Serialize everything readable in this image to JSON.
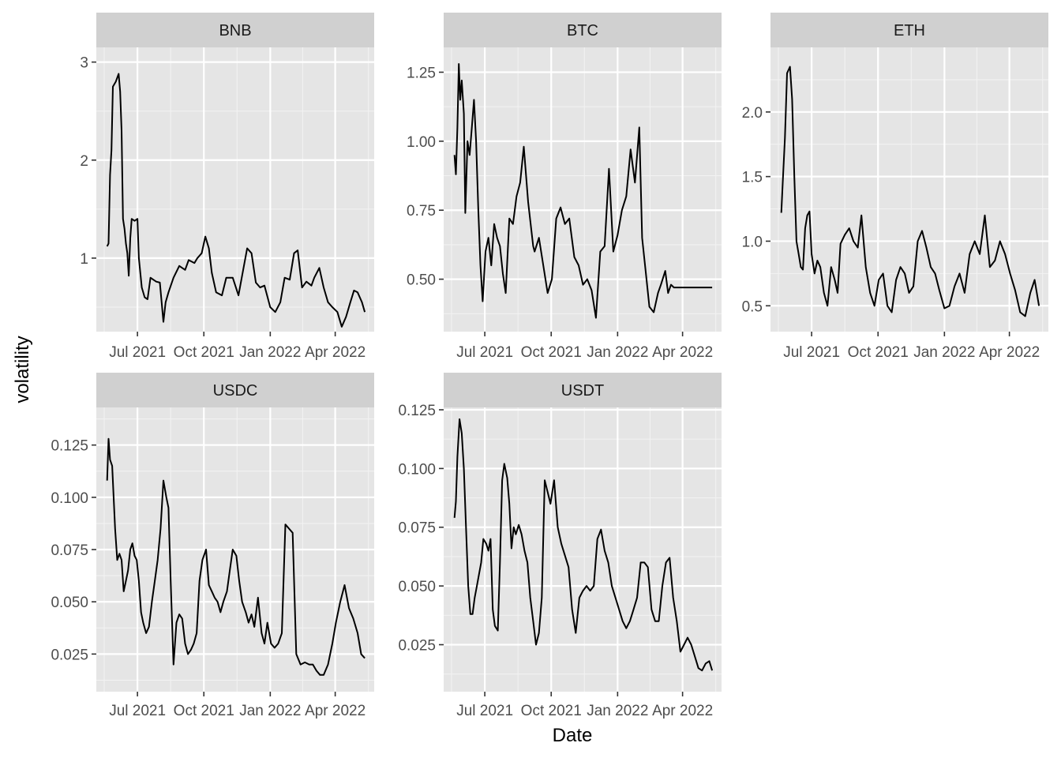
{
  "chart_data": {
    "type": "line",
    "layout": "faceted",
    "xlabel": "Date",
    "ylabel": "volatility",
    "x_ticks": [
      "2021-07-01",
      "2021-10-01",
      "2022-01-01",
      "2022-04-01"
    ],
    "x_tick_labels": [
      "Jul 2021",
      "Oct 2021",
      "Jan 2022",
      "Apr 2022"
    ],
    "xlim": [
      "2021-05-05",
      "2022-05-25"
    ],
    "grid": true,
    "legend": "none",
    "facets": [
      {
        "name": "BNB",
        "ylim": [
          0.25,
          3.15
        ],
        "y_ticks": [
          1,
          2,
          3
        ],
        "y_tick_labels": [
          "1",
          "2",
          "3"
        ],
        "x": [
          "2021-05-20",
          "2021-05-22",
          "2021-05-24",
          "2021-05-26",
          "2021-05-28",
          "2021-06-01",
          "2021-06-05",
          "2021-06-07",
          "2021-06-09",
          "2021-06-11",
          "2021-06-13",
          "2021-06-15",
          "2021-06-17",
          "2021-06-19",
          "2021-06-21",
          "2021-06-23",
          "2021-06-27",
          "2021-07-01",
          "2021-07-03",
          "2021-07-07",
          "2021-07-11",
          "2021-07-15",
          "2021-07-19",
          "2021-07-23",
          "2021-07-27",
          "2021-08-01",
          "2021-08-06",
          "2021-08-09",
          "2021-08-13",
          "2021-08-20",
          "2021-08-28",
          "2021-09-05",
          "2021-09-10",
          "2021-09-18",
          "2021-09-22",
          "2021-09-28",
          "2021-10-03",
          "2021-10-08",
          "2021-10-12",
          "2021-10-18",
          "2021-10-26",
          "2021-11-01",
          "2021-11-10",
          "2021-11-18",
          "2021-11-25",
          "2021-11-30",
          "2021-12-06",
          "2021-12-12",
          "2021-12-18",
          "2021-12-24",
          "2022-01-01",
          "2022-01-08",
          "2022-01-15",
          "2022-01-21",
          "2022-01-28",
          "2022-02-03",
          "2022-02-08",
          "2022-02-14",
          "2022-02-20",
          "2022-02-27",
          "2022-03-03",
          "2022-03-10",
          "2022-03-16",
          "2022-03-22",
          "2022-03-28",
          "2022-04-04",
          "2022-04-10",
          "2022-04-16",
          "2022-04-22",
          "2022-04-27",
          "2022-05-02",
          "2022-05-08",
          "2022-05-12"
        ],
        "y": [
          1.12,
          1.15,
          1.85,
          2.1,
          2.75,
          2.8,
          2.88,
          2.7,
          2.3,
          1.4,
          1.3,
          1.15,
          1.05,
          0.82,
          1.2,
          1.4,
          1.38,
          1.4,
          1.0,
          0.7,
          0.6,
          0.58,
          0.8,
          0.78,
          0.76,
          0.75,
          0.35,
          0.55,
          0.65,
          0.8,
          0.92,
          0.88,
          0.98,
          0.95,
          1.0,
          1.05,
          1.22,
          1.1,
          0.85,
          0.65,
          0.62,
          0.8,
          0.8,
          0.62,
          0.9,
          1.1,
          1.05,
          0.75,
          0.7,
          0.72,
          0.5,
          0.45,
          0.55,
          0.8,
          0.78,
          1.05,
          1.08,
          0.7,
          0.76,
          0.72,
          0.8,
          0.9,
          0.7,
          0.55,
          0.5,
          0.45,
          0.3,
          0.4,
          0.55,
          0.67,
          0.65,
          0.55,
          0.45
        ]
      },
      {
        "name": "BTC",
        "ylim": [
          0.31,
          1.34
        ],
        "y_ticks": [
          0.5,
          0.75,
          1.0,
          1.25
        ],
        "y_tick_labels": [
          "0.50",
          "0.75",
          "1.00",
          "1.25"
        ],
        "x": [
          "2021-05-20",
          "2021-05-22",
          "2021-05-24",
          "2021-05-26",
          "2021-05-28",
          "2021-05-30",
          "2021-06-02",
          "2021-06-04",
          "2021-06-07",
          "2021-06-10",
          "2021-06-13",
          "2021-06-16",
          "2021-06-19",
          "2021-06-22",
          "2021-06-25",
          "2021-06-28",
          "2021-07-02",
          "2021-07-06",
          "2021-07-10",
          "2021-07-14",
          "2021-07-18",
          "2021-07-22",
          "2021-07-26",
          "2021-07-30",
          "2021-08-04",
          "2021-08-09",
          "2021-08-14",
          "2021-08-19",
          "2021-08-24",
          "2021-08-30",
          "2021-09-06",
          "2021-09-08",
          "2021-09-14",
          "2021-09-20",
          "2021-09-26",
          "2021-10-02",
          "2021-10-08",
          "2021-10-14",
          "2021-10-20",
          "2021-10-26",
          "2021-11-02",
          "2021-11-08",
          "2021-11-14",
          "2021-11-20",
          "2021-11-26",
          "2021-12-02",
          "2021-12-08",
          "2021-12-14",
          "2021-12-20",
          "2021-12-26",
          "2022-01-01",
          "2022-01-07",
          "2022-01-13",
          "2022-01-19",
          "2022-01-25",
          "2022-01-31",
          "2022-02-04",
          "2022-02-08",
          "2022-02-14",
          "2022-02-20",
          "2022-02-26",
          "2022-03-02",
          "2022-03-08",
          "2022-03-12",
          "2022-03-16",
          "2022-03-20",
          "2022-03-25",
          "2022-03-30",
          "2022-04-04",
          "2022-04-10",
          "2022-04-16",
          "2022-04-22",
          "2022-04-28",
          "2022-05-03",
          "2022-05-08",
          "2022-05-12"
        ],
        "y": [
          0.95,
          0.88,
          1.05,
          1.28,
          1.15,
          1.22,
          1.1,
          0.74,
          1.0,
          0.95,
          1.05,
          1.15,
          1.0,
          0.75,
          0.55,
          0.42,
          0.6,
          0.65,
          0.55,
          0.7,
          0.65,
          0.62,
          0.52,
          0.45,
          0.72,
          0.7,
          0.8,
          0.85,
          0.98,
          0.78,
          0.62,
          0.6,
          0.65,
          0.55,
          0.45,
          0.5,
          0.72,
          0.76,
          0.7,
          0.72,
          0.58,
          0.55,
          0.48,
          0.5,
          0.46,
          0.36,
          0.6,
          0.62,
          0.9,
          0.6,
          0.66,
          0.75,
          0.8,
          0.97,
          0.85,
          1.05,
          0.65,
          0.55,
          0.4,
          0.38,
          0.45,
          0.48,
          0.53,
          0.45,
          0.48,
          0.47,
          0.47,
          0.47,
          0.47,
          0.47,
          0.47,
          0.47,
          0.47,
          0.47,
          0.47,
          0.47
        ]
      },
      {
        "name": "ETH",
        "ylim": [
          0.3,
          2.5
        ],
        "y_ticks": [
          0.5,
          1.0,
          1.5,
          2.0
        ],
        "y_tick_labels": [
          "0.5",
          "1.0",
          "1.5",
          "2.0"
        ],
        "x": [
          "2021-05-20",
          "2021-05-22",
          "2021-05-25",
          "2021-05-28",
          "2021-06-01",
          "2021-06-04",
          "2021-06-07",
          "2021-06-10",
          "2021-06-13",
          "2021-06-16",
          "2021-06-19",
          "2021-06-22",
          "2021-06-25",
          "2021-06-28",
          "2021-07-01",
          "2021-07-05",
          "2021-07-09",
          "2021-07-13",
          "2021-07-18",
          "2021-07-23",
          "2021-07-28",
          "2021-08-02",
          "2021-08-06",
          "2021-08-10",
          "2021-08-16",
          "2021-08-22",
          "2021-08-28",
          "2021-09-03",
          "2021-09-08",
          "2021-09-14",
          "2021-09-20",
          "2021-09-26",
          "2021-10-02",
          "2021-10-08",
          "2021-10-14",
          "2021-10-20",
          "2021-10-26",
          "2021-11-01",
          "2021-11-07",
          "2021-11-13",
          "2021-11-19",
          "2021-11-25",
          "2021-12-01",
          "2021-12-07",
          "2021-12-13",
          "2021-12-19",
          "2021-12-25",
          "2022-01-01",
          "2022-01-08",
          "2022-01-15",
          "2022-01-22",
          "2022-01-29",
          "2022-02-05",
          "2022-02-12",
          "2022-02-19",
          "2022-02-26",
          "2022-03-05",
          "2022-03-12",
          "2022-03-19",
          "2022-03-26",
          "2022-04-02",
          "2022-04-09",
          "2022-04-16",
          "2022-04-23",
          "2022-04-30",
          "2022-05-06",
          "2022-05-12"
        ],
        "y": [
          1.22,
          1.45,
          1.8,
          2.3,
          2.35,
          2.1,
          1.5,
          1.0,
          0.9,
          0.8,
          0.78,
          1.1,
          1.2,
          1.23,
          0.9,
          0.75,
          0.85,
          0.8,
          0.6,
          0.5,
          0.8,
          0.7,
          0.6,
          0.98,
          1.05,
          1.1,
          1.0,
          0.95,
          1.2,
          0.8,
          0.6,
          0.5,
          0.7,
          0.75,
          0.5,
          0.45,
          0.7,
          0.8,
          0.75,
          0.6,
          0.65,
          1.0,
          1.08,
          0.95,
          0.8,
          0.75,
          0.62,
          0.48,
          0.5,
          0.65,
          0.75,
          0.6,
          0.9,
          1.0,
          0.9,
          1.2,
          0.8,
          0.85,
          1.0,
          0.9,
          0.75,
          0.62,
          0.45,
          0.42,
          0.6,
          0.7,
          0.5
        ]
      },
      {
        "name": "USDC",
        "ylim": [
          0.007,
          0.143
        ],
        "y_ticks": [
          0.025,
          0.05,
          0.075,
          0.1,
          0.125
        ],
        "y_tick_labels": [
          "0.025",
          "0.050",
          "0.075",
          "0.100",
          "0.125"
        ],
        "x": [
          "2021-05-20",
          "2021-05-22",
          "2021-05-24",
          "2021-05-27",
          "2021-05-31",
          "2021-06-03",
          "2021-06-06",
          "2021-06-09",
          "2021-06-12",
          "2021-06-15",
          "2021-06-18",
          "2021-06-21",
          "2021-06-24",
          "2021-06-27",
          "2021-06-30",
          "2021-07-03",
          "2021-07-06",
          "2021-07-09",
          "2021-07-13",
          "2021-07-17",
          "2021-07-21",
          "2021-07-25",
          "2021-07-29",
          "2021-08-02",
          "2021-08-06",
          "2021-08-10",
          "2021-08-13",
          "2021-08-16",
          "2021-08-20",
          "2021-08-24",
          "2021-08-28",
          "2021-09-01",
          "2021-09-05",
          "2021-09-09",
          "2021-09-13",
          "2021-09-17",
          "2021-09-21",
          "2021-09-25",
          "2021-09-29",
          "2021-10-04",
          "2021-10-08",
          "2021-10-12",
          "2021-10-16",
          "2021-10-20",
          "2021-10-24",
          "2021-10-28",
          "2021-11-02",
          "2021-11-06",
          "2021-11-10",
          "2021-11-15",
          "2021-11-19",
          "2021-11-23",
          "2021-11-28",
          "2021-12-02",
          "2021-12-06",
          "2021-12-10",
          "2021-12-15",
          "2021-12-20",
          "2021-12-24",
          "2021-12-28",
          "2022-01-02",
          "2022-01-07",
          "2022-01-12",
          "2022-01-17",
          "2022-01-22",
          "2022-01-27",
          "2022-02-01",
          "2022-02-06",
          "2022-02-12",
          "2022-02-18",
          "2022-02-24",
          "2022-03-01",
          "2022-03-06",
          "2022-03-11",
          "2022-03-16",
          "2022-03-22",
          "2022-03-28",
          "2022-04-02",
          "2022-04-08",
          "2022-04-14",
          "2022-04-20",
          "2022-04-26",
          "2022-05-02",
          "2022-05-07",
          "2022-05-12"
        ],
        "y": [
          0.108,
          0.128,
          0.118,
          0.115,
          0.085,
          0.07,
          0.073,
          0.07,
          0.055,
          0.06,
          0.065,
          0.075,
          0.078,
          0.072,
          0.07,
          0.06,
          0.045,
          0.04,
          0.035,
          0.038,
          0.05,
          0.06,
          0.07,
          0.085,
          0.108,
          0.1,
          0.095,
          0.06,
          0.02,
          0.04,
          0.044,
          0.042,
          0.03,
          0.025,
          0.027,
          0.03,
          0.035,
          0.06,
          0.07,
          0.075,
          0.058,
          0.055,
          0.052,
          0.05,
          0.045,
          0.05,
          0.055,
          0.065,
          0.075,
          0.072,
          0.06,
          0.05,
          0.045,
          0.04,
          0.044,
          0.038,
          0.052,
          0.035,
          0.03,
          0.04,
          0.03,
          0.028,
          0.03,
          0.035,
          0.087,
          0.085,
          0.083,
          0.025,
          0.02,
          0.021,
          0.02,
          0.02,
          0.017,
          0.015,
          0.015,
          0.02,
          0.03,
          0.04,
          0.05,
          0.058,
          0.047,
          0.042,
          0.035,
          0.025,
          0.023
        ]
      },
      {
        "name": "USDT",
        "ylim": [
          0.005,
          0.126
        ],
        "y_ticks": [
          0.025,
          0.05,
          0.075,
          0.1,
          0.125
        ],
        "y_tick_labels": [
          "0.025",
          "0.050",
          "0.075",
          "0.100",
          "0.125"
        ],
        "x": [
          "2021-05-20",
          "2021-05-22",
          "2021-05-24",
          "2021-05-27",
          "2021-05-30",
          "2021-06-02",
          "2021-06-05",
          "2021-06-08",
          "2021-06-11",
          "2021-06-14",
          "2021-06-17",
          "2021-06-20",
          "2021-06-23",
          "2021-06-26",
          "2021-06-29",
          "2021-07-03",
          "2021-07-06",
          "2021-07-09",
          "2021-07-12",
          "2021-07-15",
          "2021-07-19",
          "2021-07-22",
          "2021-07-25",
          "2021-07-28",
          "2021-08-01",
          "2021-08-04",
          "2021-08-07",
          "2021-08-10",
          "2021-08-13",
          "2021-08-17",
          "2021-08-21",
          "2021-08-25",
          "2021-08-29",
          "2021-09-02",
          "2021-09-06",
          "2021-09-10",
          "2021-09-14",
          "2021-09-18",
          "2021-09-22",
          "2021-09-26",
          "2021-09-30",
          "2021-10-05",
          "2021-10-10",
          "2021-10-15",
          "2021-10-20",
          "2021-10-25",
          "2021-10-30",
          "2021-11-04",
          "2021-11-09",
          "2021-11-14",
          "2021-11-19",
          "2021-11-24",
          "2021-11-29",
          "2021-12-04",
          "2021-12-09",
          "2021-12-14",
          "2021-12-19",
          "2021-12-24",
          "2021-12-29",
          "2022-01-03",
          "2022-01-08",
          "2022-01-13",
          "2022-01-18",
          "2022-01-23",
          "2022-01-28",
          "2022-02-02",
          "2022-02-07",
          "2022-02-12",
          "2022-02-17",
          "2022-02-22",
          "2022-02-27",
          "2022-03-04",
          "2022-03-09",
          "2022-03-14",
          "2022-03-19",
          "2022-03-24",
          "2022-03-29",
          "2022-04-03",
          "2022-04-08",
          "2022-04-13",
          "2022-04-18",
          "2022-04-23",
          "2022-04-28",
          "2022-05-03",
          "2022-05-08",
          "2022-05-12"
        ],
        "y": [
          0.079,
          0.086,
          0.105,
          0.121,
          0.115,
          0.1,
          0.075,
          0.05,
          0.038,
          0.038,
          0.045,
          0.05,
          0.055,
          0.06,
          0.07,
          0.068,
          0.065,
          0.07,
          0.04,
          0.033,
          0.031,
          0.06,
          0.095,
          0.102,
          0.096,
          0.085,
          0.066,
          0.075,
          0.072,
          0.076,
          0.072,
          0.065,
          0.06,
          0.045,
          0.035,
          0.025,
          0.03,
          0.045,
          0.095,
          0.09,
          0.085,
          0.095,
          0.075,
          0.068,
          0.063,
          0.058,
          0.04,
          0.03,
          0.045,
          0.048,
          0.05,
          0.048,
          0.05,
          0.07,
          0.074,
          0.065,
          0.06,
          0.05,
          0.045,
          0.04,
          0.035,
          0.032,
          0.035,
          0.04,
          0.045,
          0.06,
          0.06,
          0.058,
          0.04,
          0.035,
          0.035,
          0.05,
          0.06,
          0.062,
          0.045,
          0.035,
          0.022,
          0.025,
          0.028,
          0.025,
          0.02,
          0.015,
          0.014,
          0.017,
          0.018,
          0.014
        ]
      }
    ]
  }
}
